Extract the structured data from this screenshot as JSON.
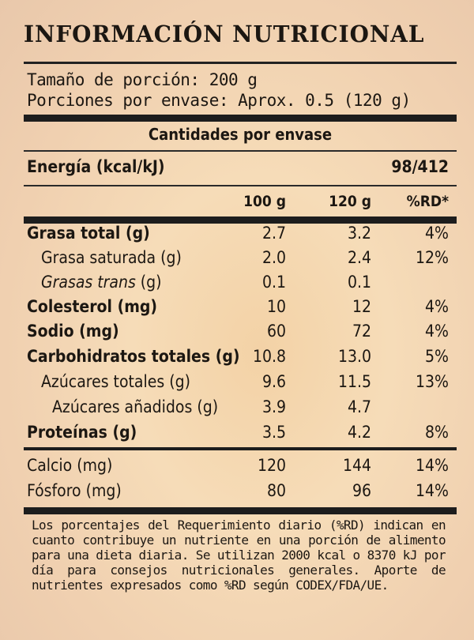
{
  "title": "INFORMACIÓN NUTRICIONAL",
  "serving": {
    "size": "Tamaño de porción: 200 g",
    "per_package": "Porciones por envase: Aprox. 0.5 (120 g)"
  },
  "section_header": "Cantidades por envase",
  "energy": {
    "label": "Energía (kcal/kJ)",
    "value": "98/412"
  },
  "columns": [
    "100 g",
    "120 g",
    "%RD*"
  ],
  "rows": [
    {
      "label": "Grasa total (g)",
      "v100": "2.7",
      "v120": "3.2",
      "rd": "4%"
    },
    {
      "label": "Grasa saturada (g)",
      "v100": "2.0",
      "v120": "2.4",
      "rd": "12%"
    },
    {
      "label": "Grasas trans (g)",
      "v100": "0.1",
      "v120": "0.1",
      "rd": ""
    },
    {
      "label": "Colesterol (mg)",
      "v100": "10",
      "v120": "12",
      "rd": "4%"
    },
    {
      "label": "Sodio (mg)",
      "v100": "60",
      "v120": "72",
      "rd": "4%"
    },
    {
      "label": "Carbohidratos totales (g)",
      "v100": "10.8",
      "v120": "13.0",
      "rd": "5%"
    },
    {
      "label": "Azúcares totales (g)",
      "v100": "9.6",
      "v120": "11.5",
      "rd": "13%"
    },
    {
      "label": "Azúcares añadidos (g)",
      "v100": "3.9",
      "v120": "4.7",
      "rd": ""
    },
    {
      "label": "Proteínas (g)",
      "v100": "3.5",
      "v120": "4.2",
      "rd": "8%"
    },
    {
      "label": "Calcio (mg)",
      "v100": "120",
      "v120": "144",
      "rd": "14%"
    },
    {
      "label": "Fósforo (mg)",
      "v100": "80",
      "v120": "96",
      "rd": "14%"
    }
  ],
  "footnote": "Los porcentajes del Requerimiento diario (%RD) indican en cuanto contribuye un nutriente en una porción de alimento para una dieta diaria. Se utilizan 2000 kcal o 8370 kJ por día para consejos nutricionales generales. Aporte de nutrientes expresados como %RD según CODEX/FDA/UE."
}
